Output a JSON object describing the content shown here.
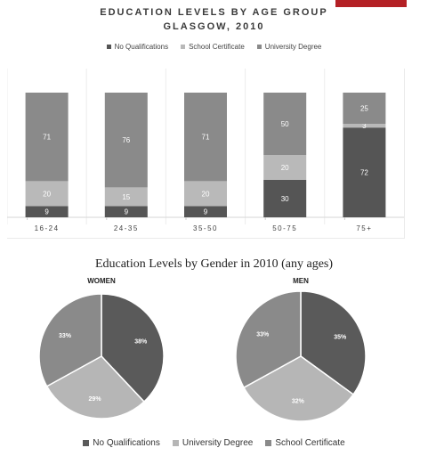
{
  "chart_data": [
    {
      "type": "bar",
      "stacked": true,
      "title": "EDUCATION LEVELS BY AGE GROUP",
      "subtitle": "GLASGOW, 2010",
      "categories": [
        "16-24",
        "24-35",
        "35-50",
        "50-75",
        "75+"
      ],
      "series": [
        {
          "name": "No Qualifications",
          "values": [
            9,
            9,
            9,
            30,
            72
          ],
          "color": "#555555"
        },
        {
          "name": "School Certificate",
          "values": [
            20,
            15,
            20,
            20,
            3
          ],
          "color": "#b9b9b9"
        },
        {
          "name": "University Degree",
          "values": [
            71,
            76,
            71,
            50,
            25
          ],
          "color": "#8a8a8a"
        }
      ],
      "ylim": [
        0,
        100
      ],
      "legend_position": "top",
      "grid": false
    },
    {
      "type": "pie",
      "title": "WOMEN",
      "labels": [
        "No Qualifications",
        "University Degree",
        "School Certificate"
      ],
      "values": [
        38,
        29,
        33
      ],
      "colors": [
        "#5a5a5a",
        "#b6b6b6",
        "#8a8a8a"
      ]
    },
    {
      "type": "pie",
      "title": "MEN",
      "labels": [
        "No Qualifications",
        "University Degree",
        "School Certificate"
      ],
      "values": [
        35,
        32,
        33
      ],
      "colors": [
        "#5a5a5a",
        "#b6b6b6",
        "#8a8a8a"
      ]
    }
  ],
  "pies_heading": "Education Levels by Gender in 2010 (any ages)",
  "pie_legend": [
    {
      "label": "No Qualifications",
      "color": "#5a5a5a"
    },
    {
      "label": "University Degree",
      "color": "#b6b6b6"
    },
    {
      "label": "School Certificate",
      "color": "#8a8a8a"
    }
  ],
  "pie_value_labels": {
    "women": [
      "38%",
      "29%",
      "33%"
    ],
    "men": [
      "35%",
      "32%",
      "33%"
    ]
  },
  "accent_color": "#b42025"
}
